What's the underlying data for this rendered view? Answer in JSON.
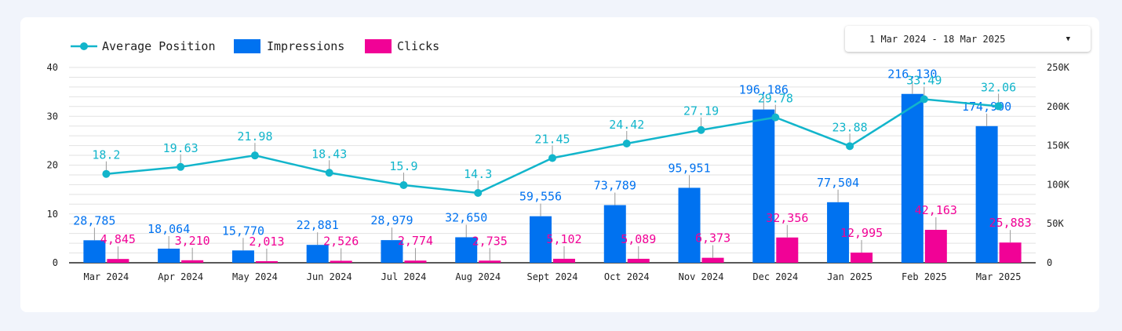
{
  "date_picker": {
    "label": "1 Mar 2024 - 18 Mar 2025",
    "icon": "caret-down-icon"
  },
  "chart_data": {
    "type": "bar",
    "categories": [
      "Mar 2024",
      "Apr 2024",
      "May 2024",
      "Jun 2024",
      "Jul 2024",
      "Aug 2024",
      "Sept 2024",
      "Oct 2024",
      "Nov 2024",
      "Dec 2024",
      "Jan 2025",
      "Feb 2025",
      "Mar 2025"
    ],
    "legend_placement": "top-left",
    "grid": true,
    "series": [
      {
        "name": "Average Position",
        "type": "line",
        "axis": "left",
        "color": "#12b5cb",
        "values": [
          18.2,
          19.63,
          21.98,
          18.43,
          15.9,
          14.3,
          21.45,
          24.42,
          27.19,
          29.78,
          23.88,
          33.49,
          32.06
        ],
        "labels": [
          "18.2",
          "19.63",
          "21.98",
          "18.43",
          "15.9",
          "14.3",
          "21.45",
          "24.42",
          "27.19",
          "29.78",
          "23.88",
          "33.49",
          "32.06"
        ]
      },
      {
        "name": "Impressions",
        "type": "bar",
        "axis": "right",
        "color": "#0072f0",
        "values": [
          28785,
          18064,
          15770,
          22881,
          28979,
          32650,
          59556,
          73789,
          95951,
          196186,
          77504,
          216130,
          174900
        ],
        "labels": [
          "28,785",
          "18,064",
          "15,770",
          "22,881",
          "28,979",
          "32,650",
          "59,556",
          "73,789",
          "95,951",
          "196,186",
          "77,504",
          "216,130",
          "174,900"
        ]
      },
      {
        "name": "Clicks",
        "type": "bar",
        "axis": "right",
        "color": "#f10296",
        "values": [
          4845,
          3210,
          2013,
          2526,
          2774,
          2735,
          5102,
          5089,
          6373,
          32356,
          12995,
          42163,
          25883
        ],
        "labels": [
          "4,845",
          "3,210",
          "2,013",
          "2,526",
          "2,774",
          "2,735",
          "5,102",
          "5,089",
          "6,373",
          "32,356",
          "12,995",
          "42,163",
          "25,883"
        ]
      }
    ],
    "y_left": {
      "ylim": [
        0,
        40
      ],
      "ticks": [
        "0",
        "10",
        "20",
        "30",
        "40"
      ]
    },
    "y_right": {
      "ylim": [
        0,
        250000
      ],
      "ticks": [
        "0",
        "50K",
        "100K",
        "150K",
        "200K",
        "250K"
      ]
    }
  }
}
